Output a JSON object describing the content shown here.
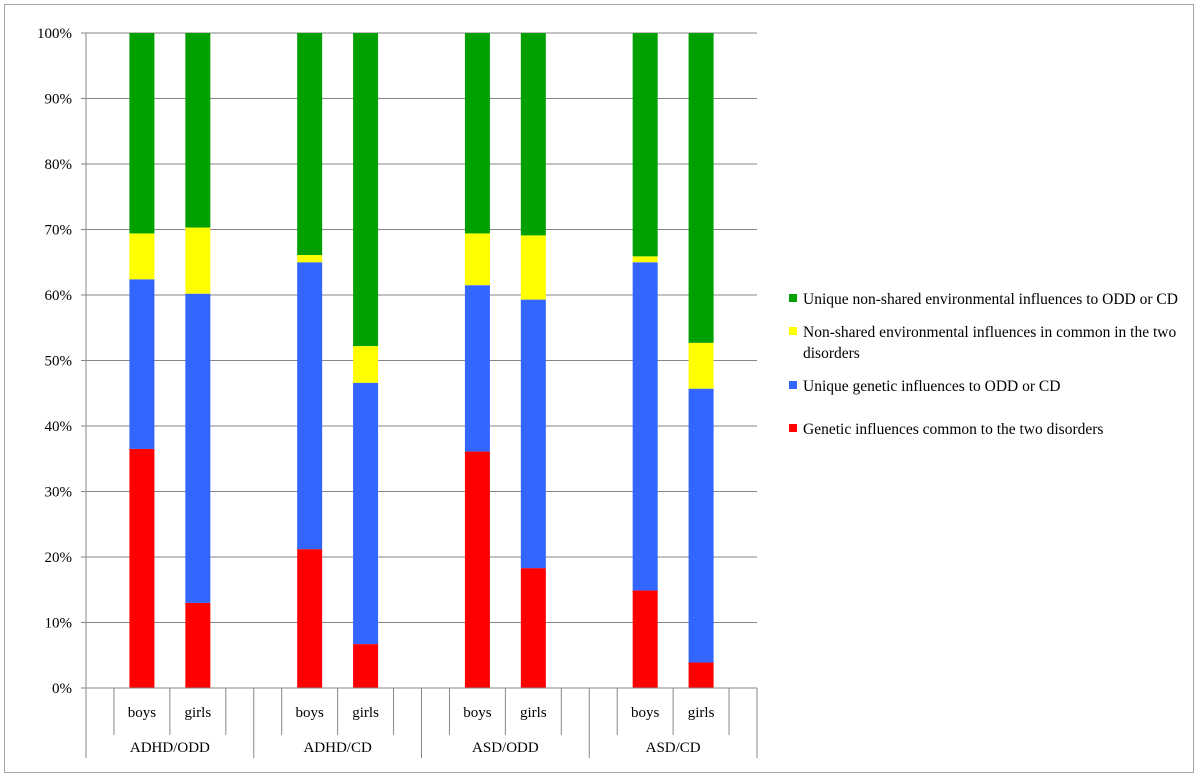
{
  "chart_data": {
    "type": "bar",
    "stacked": true,
    "percent_stacked": true,
    "groups": [
      {
        "label": "ADHD/ODD",
        "categories": [
          "boys",
          "girls"
        ]
      },
      {
        "label": "ADHD/CD",
        "categories": [
          "boys",
          "girls"
        ]
      },
      {
        "label": "ASD/ODD",
        "categories": [
          "boys",
          "girls"
        ]
      },
      {
        "label": "ASD/CD",
        "categories": [
          "boys",
          "girls"
        ]
      }
    ],
    "series": [
      {
        "name": "Genetic influences  common to the two disorders",
        "color": "#ff0000",
        "values": [
          36.5,
          13.0,
          21.2,
          6.7,
          36.1,
          18.3,
          14.9,
          3.9
        ]
      },
      {
        "name": "Unique genetic influences to ODD or CD",
        "color": "#3366ff",
        "values": [
          25.9,
          47.2,
          43.8,
          39.9,
          25.4,
          41.0,
          50.1,
          41.8
        ]
      },
      {
        "name": "Non-shared environmental influences in common in the two disorders",
        "color": "#ffff00",
        "values": [
          7.0,
          10.1,
          1.1,
          5.6,
          7.9,
          9.8,
          0.9,
          7.0
        ]
      },
      {
        "name": "Unique non-shared environmental influences to ODD or CD",
        "color": "#00a000",
        "values": [
          30.6,
          29.7,
          33.9,
          47.8,
          30.6,
          30.9,
          34.1,
          47.3
        ]
      }
    ],
    "ylim": [
      0,
      100
    ],
    "yticks": [
      "0%",
      "10%",
      "20%",
      "30%",
      "40%",
      "50%",
      "60%",
      "70%",
      "80%",
      "90%",
      "100%"
    ],
    "grid": true,
    "legend_position": "right"
  }
}
